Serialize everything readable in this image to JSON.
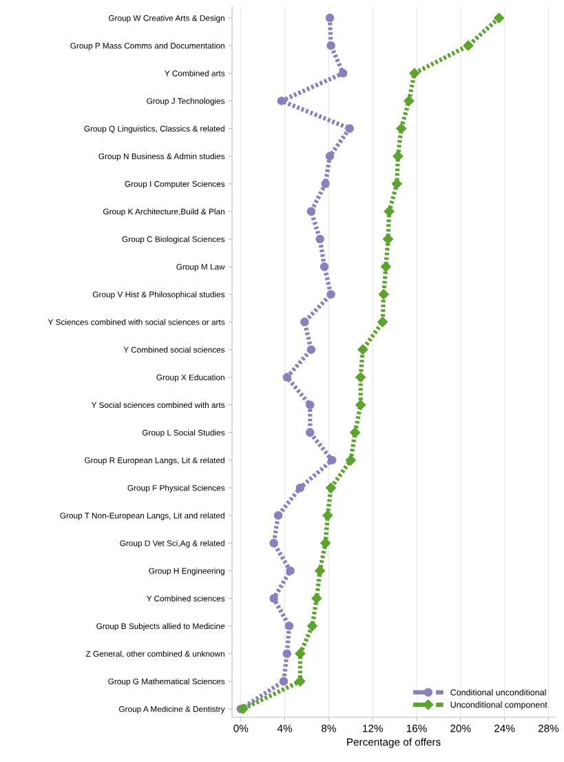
{
  "chart_data": {
    "type": "line",
    "orientation": "horizontal",
    "xlabel": "Percentage of offers",
    "categories": [
      "Group W Creative Arts & Design",
      "Group P Mass Comms and Documentation",
      "Y Combined arts",
      "Group J Technologies",
      "Group Q Linguistics, Classics & related",
      "Group N Business & Admin studies",
      "Group I Computer Sciences",
      "Group K Architecture,Build & Plan",
      "Group C Biological Sciences",
      "Group M Law",
      "Group V Hist & Philosophical studies",
      "Y Sciences combined with social sciences or arts",
      "Y Combined social sciences",
      "Group X Education",
      "Y Social sciences combined with arts",
      "Group L Social Studies",
      "Group R European Langs, Lit & related",
      "Group F Physical Sciences",
      "Group T Non-European Langs, Lit and related",
      "Group D Vet Sci,Ag & related",
      "Group H Engineering",
      "Y Combined sciences",
      "Group B Subjects allied to Medicine",
      "Z General, other combined & unknown",
      "Group G Mathematical Sciences",
      "Group A Medicine & Dentistry"
    ],
    "series": [
      {
        "name": "Conditional unconditional",
        "color": "#8a7fc1",
        "marker": "circle",
        "values": [
          8.1,
          8.2,
          9.3,
          3.7,
          9.9,
          8.1,
          7.7,
          6.4,
          7.2,
          7.6,
          8.2,
          5.8,
          6.4,
          4.2,
          6.3,
          6.3,
          8.3,
          5.4,
          3.4,
          3.0,
          4.5,
          3.0,
          4.4,
          4.2,
          3.9,
          0.0
        ]
      },
      {
        "name": "Unconditional component",
        "color": "#5aa52a",
        "marker": "diamond",
        "values": [
          23.5,
          20.7,
          15.8,
          15.3,
          14.6,
          14.3,
          14.2,
          13.5,
          13.4,
          13.2,
          13.0,
          12.9,
          11.1,
          10.9,
          10.9,
          10.4,
          10.0,
          8.2,
          7.9,
          7.7,
          7.2,
          6.9,
          6.5,
          5.4,
          5.4,
          0.2
        ]
      }
    ],
    "xlim": [
      -0.8,
      28.6
    ],
    "xticks": [
      {
        "value": 0,
        "label": "0%"
      },
      {
        "value": 4,
        "label": "4%"
      },
      {
        "value": 8,
        "label": "8%"
      },
      {
        "value": 12,
        "label": "12%"
      },
      {
        "value": 16,
        "label": "16%"
      },
      {
        "value": 20,
        "label": "20%"
      },
      {
        "value": 24,
        "label": "24%"
      },
      {
        "value": 28,
        "label": "28%"
      }
    ],
    "grid": "x",
    "legend": "bottom right",
    "line_style": "dotted"
  }
}
